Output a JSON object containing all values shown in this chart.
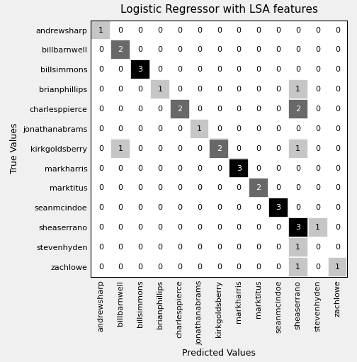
{
  "title": "Logistic Regressor with LSA features",
  "xlabel": "Predicted Values",
  "ylabel": "True Values",
  "labels": [
    "andrewsharp",
    "billbarnwell",
    "billsimmons",
    "brianphillips",
    "charlesppierce",
    "jonathanabrams",
    "kirkgoldsberry",
    "markharris",
    "marktitus",
    "seanmcindoe",
    "sheaserrano",
    "stevenhyden",
    "zachlowe"
  ],
  "matrix": [
    [
      1,
      0,
      0,
      0,
      0,
      0,
      0,
      0,
      0,
      0,
      0,
      0,
      0
    ],
    [
      0,
      2,
      0,
      0,
      0,
      0,
      0,
      0,
      0,
      0,
      0,
      0,
      0
    ],
    [
      0,
      0,
      3,
      0,
      0,
      0,
      0,
      0,
      0,
      0,
      0,
      0,
      0
    ],
    [
      0,
      0,
      0,
      1,
      0,
      0,
      0,
      0,
      0,
      0,
      1,
      0,
      0
    ],
    [
      0,
      0,
      0,
      0,
      2,
      0,
      0,
      0,
      0,
      0,
      2,
      0,
      0
    ],
    [
      0,
      0,
      0,
      0,
      0,
      1,
      0,
      0,
      0,
      0,
      0,
      0,
      0
    ],
    [
      0,
      1,
      0,
      0,
      0,
      0,
      2,
      0,
      0,
      0,
      1,
      0,
      0
    ],
    [
      0,
      0,
      0,
      0,
      0,
      0,
      0,
      3,
      0,
      0,
      0,
      0,
      0
    ],
    [
      0,
      0,
      0,
      0,
      0,
      0,
      0,
      0,
      2,
      0,
      0,
      0,
      0
    ],
    [
      0,
      0,
      0,
      0,
      0,
      0,
      0,
      0,
      0,
      3,
      0,
      0,
      0
    ],
    [
      0,
      0,
      0,
      0,
      0,
      0,
      0,
      0,
      0,
      0,
      3,
      1,
      0
    ],
    [
      0,
      0,
      0,
      0,
      0,
      0,
      0,
      0,
      0,
      0,
      1,
      0,
      0
    ],
    [
      0,
      0,
      0,
      0,
      0,
      0,
      0,
      0,
      0,
      0,
      1,
      0,
      1
    ]
  ],
  "cmap": "Greys",
  "background_color": "#f0f0f0",
  "title_fontsize": 11,
  "label_fontsize": 9,
  "tick_fontsize": 8,
  "cell_text_fontsize": 8,
  "vmin": 0,
  "vmax": 3
}
